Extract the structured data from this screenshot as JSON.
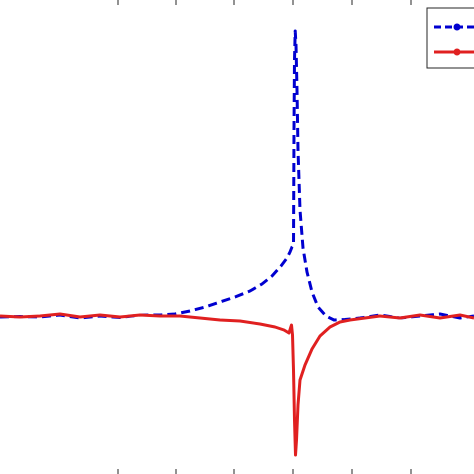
{
  "chart_data": {
    "type": "line",
    "title": "",
    "xlabel": "",
    "ylabel": "",
    "xlim": [
      0,
      474
    ],
    "ylim": [
      -474,
      0
    ],
    "grid": false,
    "legend_position": "top-right",
    "series": [
      {
        "color": "#0000d0",
        "line_style": "dashed",
        "marker": "circle",
        "points": [
          [
            0,
            -317
          ],
          [
            20,
            -316.5
          ],
          [
            40,
            -317
          ],
          [
            60,
            -315
          ],
          [
            80,
            -318
          ],
          [
            100,
            -316
          ],
          [
            120,
            -317.5
          ],
          [
            140,
            -315
          ],
          [
            160,
            -315
          ],
          [
            175,
            -314
          ],
          [
            190,
            -311
          ],
          [
            205,
            -307
          ],
          [
            220,
            -302
          ],
          [
            235,
            -297
          ],
          [
            250,
            -291
          ],
          [
            262,
            -284
          ],
          [
            272,
            -276
          ],
          [
            281,
            -266
          ],
          [
            287,
            -258
          ],
          [
            290,
            -252
          ],
          [
            292,
            -247
          ],
          [
            293.5,
            -245
          ],
          [
            294,
            -130
          ],
          [
            294.5,
            -60
          ],
          [
            295.2,
            -31
          ],
          [
            296,
            -45
          ],
          [
            297,
            -90
          ],
          [
            298,
            -150
          ],
          [
            300,
            -210
          ],
          [
            303,
            -248
          ],
          [
            307,
            -272
          ],
          [
            312,
            -292
          ],
          [
            318,
            -307
          ],
          [
            326,
            -316
          ],
          [
            334,
            -320
          ],
          [
            345,
            -319.5
          ],
          [
            360,
            -318
          ],
          [
            380,
            -315
          ],
          [
            400,
            -318
          ],
          [
            420,
            -316
          ],
          [
            440,
            -314
          ],
          [
            460,
            -318
          ],
          [
            474,
            -316
          ]
        ]
      },
      {
        "color": "#e02020",
        "line_style": "solid",
        "marker": "circle",
        "points": [
          [
            0,
            -316
          ],
          [
            20,
            -317
          ],
          [
            40,
            -316
          ],
          [
            60,
            -314
          ],
          [
            80,
            -317
          ],
          [
            100,
            -315
          ],
          [
            120,
            -317
          ],
          [
            140,
            -315
          ],
          [
            160,
            -316
          ],
          [
            180,
            -316
          ],
          [
            200,
            -318
          ],
          [
            220,
            -320
          ],
          [
            240,
            -321
          ],
          [
            260,
            -324
          ],
          [
            275,
            -327
          ],
          [
            284,
            -330
          ],
          [
            289,
            -333
          ],
          [
            291.5,
            -325
          ],
          [
            292.5,
            -335
          ],
          [
            293.5,
            -370
          ],
          [
            294.5,
            -420
          ],
          [
            295.5,
            -455
          ],
          [
            296.5,
            -440
          ],
          [
            298,
            -405
          ],
          [
            300,
            -380
          ],
          [
            305,
            -365
          ],
          [
            312,
            -349
          ],
          [
            320,
            -336
          ],
          [
            330,
            -327
          ],
          [
            340,
            -322
          ],
          [
            350,
            -320
          ],
          [
            365,
            -318
          ],
          [
            380,
            -316
          ],
          [
            400,
            -318
          ],
          [
            420,
            -315
          ],
          [
            440,
            -318
          ],
          [
            460,
            -315
          ],
          [
            474,
            -318
          ]
        ]
      }
    ]
  }
}
